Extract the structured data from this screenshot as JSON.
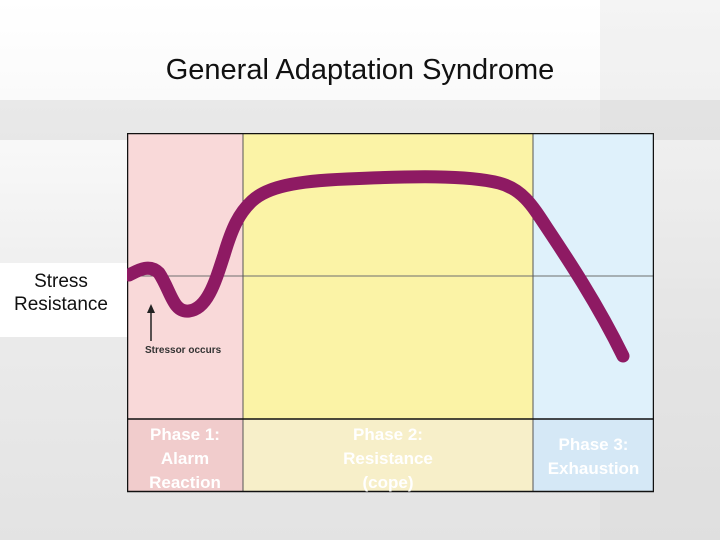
{
  "title": "General Adaptation Syndrome",
  "y_axis_label": [
    "Stress",
    "Resistance"
  ],
  "annotation": "Stressor occurs",
  "phases": [
    {
      "lines": [
        "Phase 1:",
        "Alarm",
        "Reaction"
      ],
      "panel_color": "#f9d9d9",
      "label_bg": "#f1cccc"
    },
    {
      "lines": [
        "Phase 2:",
        "Resistance",
        "(cope)"
      ],
      "panel_color": "#fbf3a6",
      "label_bg": "#f7efc9"
    },
    {
      "lines": [
        "Phase 3:",
        "Exhaustion"
      ],
      "panel_color": "#dff1fb",
      "label_bg": "#d5e8f6"
    }
  ],
  "curve_color": "#8e1a63"
}
